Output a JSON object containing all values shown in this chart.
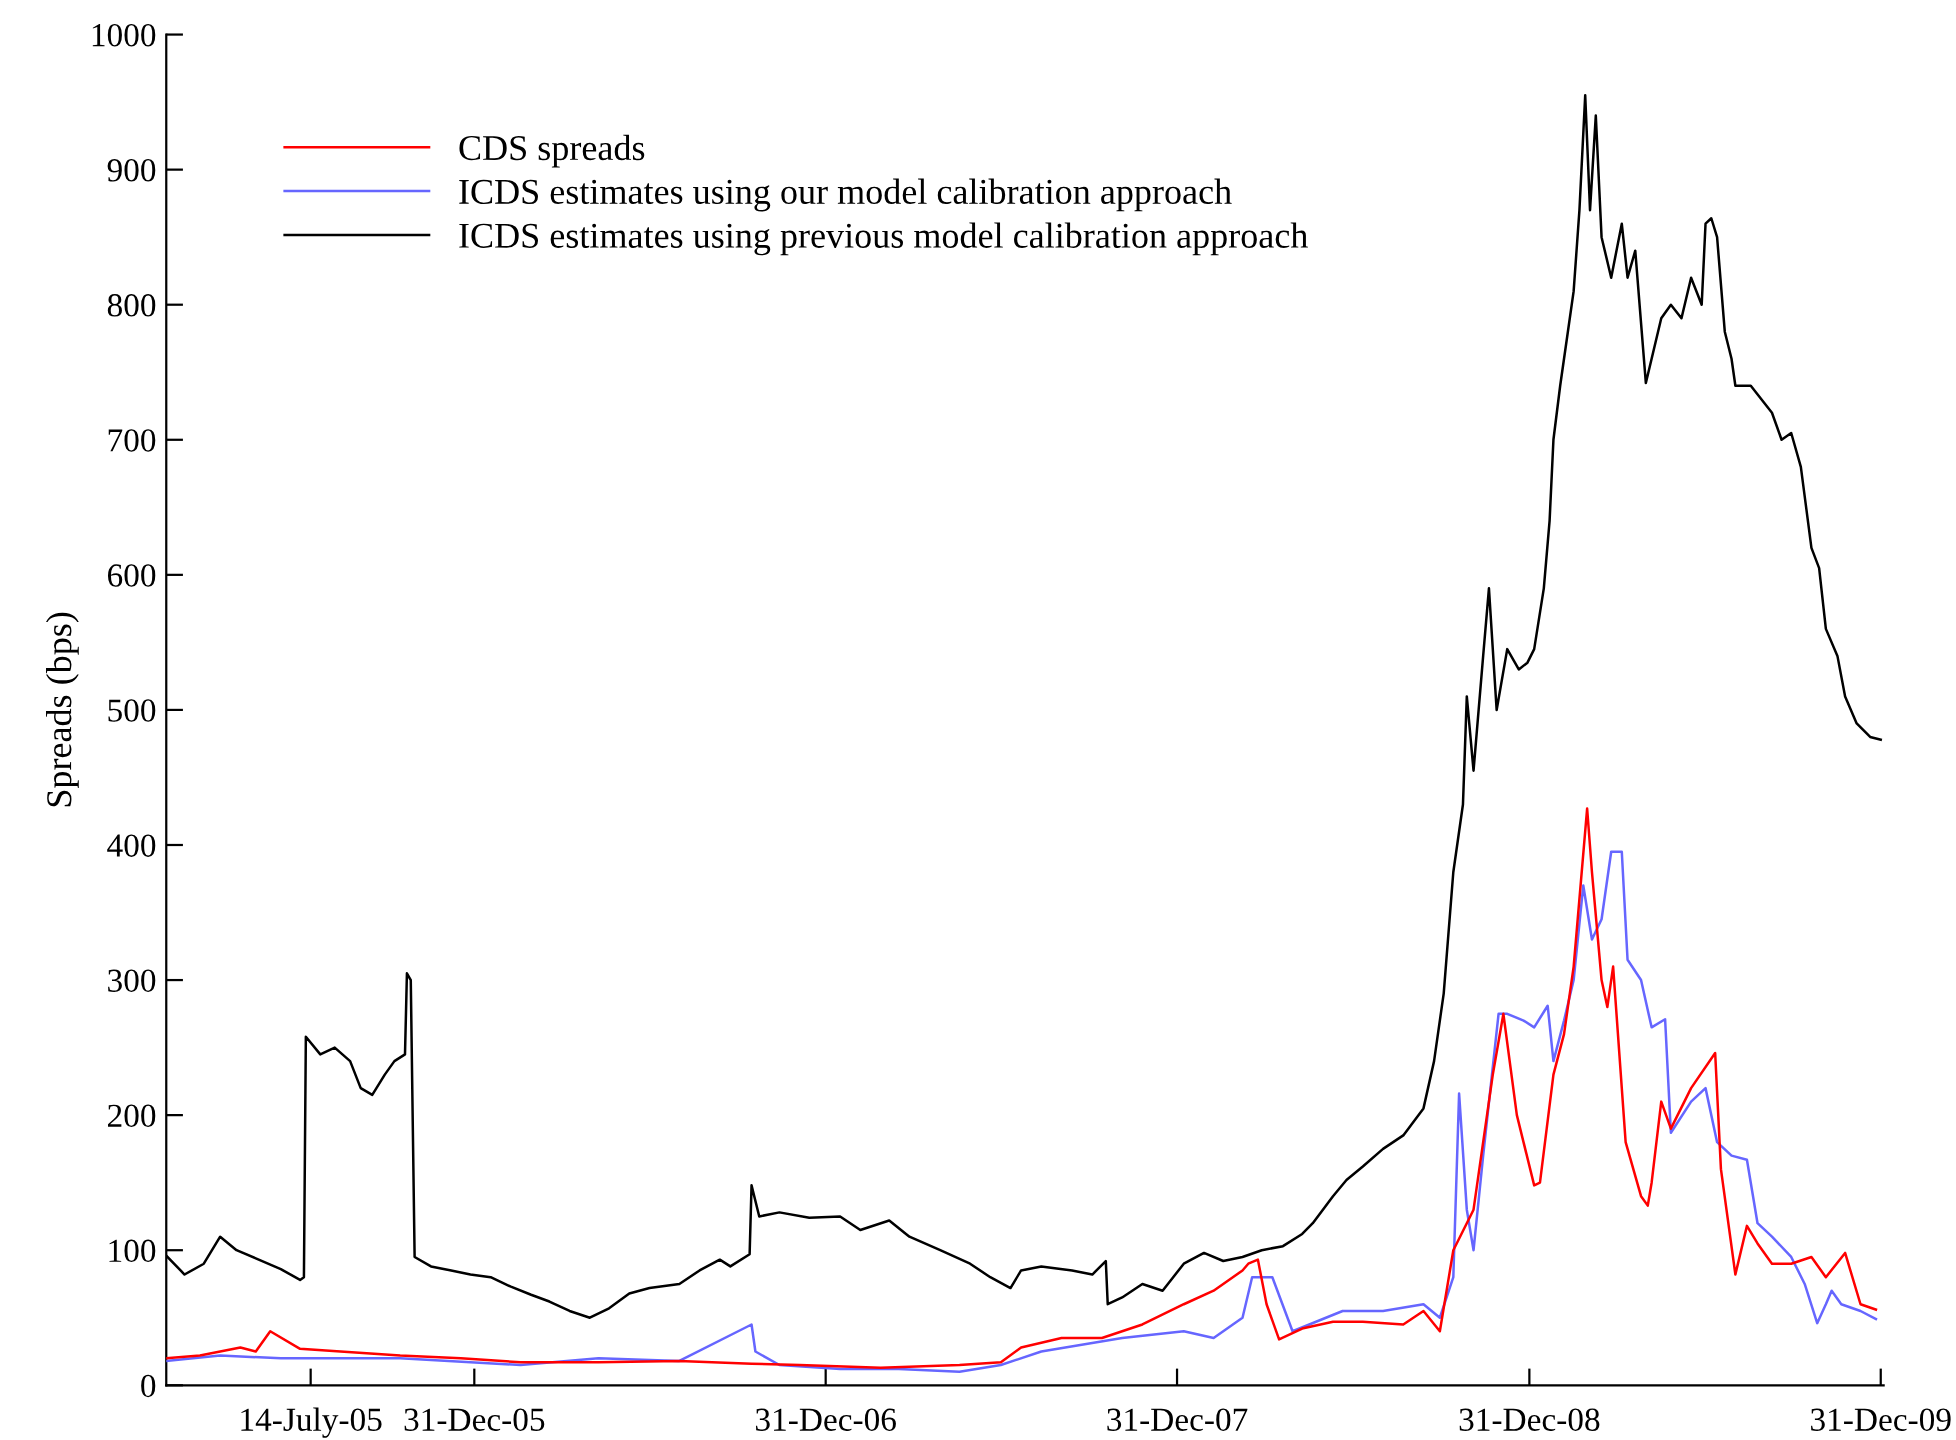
{
  "chart_data": {
    "type": "line",
    "ylabel": "Spreads (bps)",
    "xlim": [
      "2005-02-14",
      "2010-01-03"
    ],
    "xticks": [
      {
        "value": "2005-07-14",
        "label": "14-July-05"
      },
      {
        "value": "2005-12-31",
        "label": "31-Dec-05"
      },
      {
        "value": "2006-12-31",
        "label": "31-Dec-06"
      },
      {
        "value": "2007-12-31",
        "label": "31-Dec-07"
      },
      {
        "value": "2008-12-31",
        "label": "31-Dec-08"
      },
      {
        "value": "2009-12-31",
        "label": "31-Dec-09"
      }
    ],
    "ylim": [
      0,
      1000
    ],
    "yticks": [
      0,
      100,
      200,
      300,
      400,
      500,
      600,
      700,
      800,
      900,
      1000
    ],
    "grid": false,
    "legend": "top left",
    "line_style": "solid",
    "marker": "none",
    "series": [
      {
        "name": "CDS spreads",
        "color": "#ff0000",
        "x": [
          "2005-02-14",
          "2005-03-21",
          "2005-05-02",
          "2005-05-18",
          "2005-06-02",
          "2005-07-03",
          "2005-08-14",
          "2005-10-15",
          "2005-12-17",
          "2006-02-17",
          "2006-05-09",
          "2006-08-01",
          "2006-10-15",
          "2006-12-04",
          "2007-02-26",
          "2007-05-19",
          "2007-07-01",
          "2007-07-22",
          "2007-09-02",
          "2007-10-14",
          "2007-11-25",
          "2008-01-07",
          "2008-02-07",
          "2008-03-08",
          "2008-03-14",
          "2008-03-24",
          "2008-04-02",
          "2008-04-15",
          "2008-05-09",
          "2008-06-10",
          "2008-07-11",
          "2008-08-22",
          "2008-09-12",
          "2008-09-29",
          "2008-10-13",
          "2008-11-03",
          "2008-11-23",
          "2008-12-04",
          "2008-12-18",
          "2009-01-05",
          "2009-01-11",
          "2009-01-25",
          "2009-02-05",
          "2009-02-15",
          "2009-03-01",
          "2009-03-06",
          "2009-03-16",
          "2009-03-22",
          "2009-03-28",
          "2009-04-10",
          "2009-04-26",
          "2009-05-03",
          "2009-05-07",
          "2009-05-17",
          "2009-05-27",
          "2009-06-17",
          "2009-07-12",
          "2009-07-18",
          "2009-08-02",
          "2009-08-14",
          "2009-08-25",
          "2009-09-09",
          "2009-09-29",
          "2009-10-20",
          "2009-11-04",
          "2009-11-24",
          "2009-12-10",
          "2009-12-26"
        ],
        "values": [
          20,
          22,
          28,
          25,
          40,
          27,
          25,
          22,
          20,
          17,
          17,
          18,
          16,
          15,
          13,
          15,
          17,
          28,
          35,
          35,
          45,
          60,
          70,
          85,
          90,
          93,
          60,
          34,
          42,
          47,
          47,
          45,
          55,
          40,
          100,
          130,
          230,
          275,
          200,
          148,
          150,
          230,
          260,
          310,
          427,
          380,
          300,
          280,
          310,
          180,
          140,
          133,
          150,
          210,
          190,
          220,
          246,
          160,
          82,
          118,
          105,
          90,
          90,
          95,
          80,
          98,
          60,
          56
        ]
      },
      {
        "name": "ICDS estimates using our model calibration approach",
        "color": "#6666ff",
        "x": [
          "2005-02-14",
          "2005-04-11",
          "2005-06-13",
          "2005-10-15",
          "2006-02-17",
          "2006-05-09",
          "2006-08-01",
          "2006-10-15",
          "2006-10-19",
          "2006-11-13",
          "2007-01-15",
          "2007-03-17",
          "2007-05-19",
          "2007-07-01",
          "2007-08-12",
          "2007-11-04",
          "2008-01-07",
          "2008-02-07",
          "2008-03-08",
          "2008-03-18",
          "2008-04-08",
          "2008-04-29",
          "2008-06-20",
          "2008-08-01",
          "2008-09-12",
          "2008-09-29",
          "2008-10-13",
          "2008-10-19",
          "2008-10-27",
          "2008-11-03",
          "2008-11-13",
          "2008-11-29",
          "2008-12-08",
          "2008-12-25",
          "2009-01-05",
          "2009-01-19",
          "2009-01-25",
          "2009-02-05",
          "2009-02-15",
          "2009-02-25",
          "2009-03-06",
          "2009-03-16",
          "2009-03-26",
          "2009-04-06",
          "2009-04-12",
          "2009-04-26",
          "2009-05-07",
          "2009-05-21",
          "2009-05-27",
          "2009-06-17",
          "2009-07-02",
          "2009-07-14",
          "2009-07-29",
          "2009-08-14",
          "2009-08-25",
          "2009-09-09",
          "2009-09-29",
          "2009-10-13",
          "2009-10-26",
          "2009-11-04",
          "2009-11-10",
          "2009-11-20",
          "2009-12-10",
          "2009-12-26"
        ],
        "values": [
          18,
          22,
          20,
          20,
          15,
          20,
          18,
          45,
          25,
          15,
          12,
          12,
          10,
          15,
          25,
          35,
          40,
          35,
          50,
          80,
          80,
          40,
          55,
          55,
          60,
          50,
          80,
          216,
          130,
          100,
          170,
          275,
          275,
          270,
          265,
          281,
          240,
          270,
          300,
          370,
          330,
          345,
          395,
          395,
          315,
          300,
          265,
          271,
          187,
          210,
          220,
          180,
          170,
          167,
          120,
          110,
          95,
          75,
          46,
          60,
          70,
          60,
          55,
          49
        ]
      },
      {
        "name": "ICDS estimates using previous model calibration approach",
        "color": "#000000",
        "x": [
          "2005-02-14",
          "2005-03-05",
          "2005-03-25",
          "2005-04-11",
          "2005-04-28",
          "2005-05-18",
          "2005-06-13",
          "2005-07-03",
          "2005-07-07",
          "2005-07-09",
          "2005-07-24",
          "2005-08-08",
          "2005-08-24",
          "2005-09-04",
          "2005-09-16",
          "2005-09-29",
          "2005-10-09",
          "2005-10-20",
          "2005-10-22",
          "2005-10-26",
          "2005-10-30",
          "2005-11-16",
          "2005-12-07",
          "2005-12-27",
          "2006-01-17",
          "2006-02-07",
          "2006-02-28",
          "2006-03-19",
          "2006-04-09",
          "2006-04-30",
          "2006-05-20",
          "2006-06-10",
          "2006-07-01",
          "2006-08-01",
          "2006-08-22",
          "2006-09-12",
          "2006-09-23",
          "2006-10-13",
          "2006-10-15",
          "2006-10-23",
          "2006-11-13",
          "2006-12-14",
          "2007-01-15",
          "2007-02-05",
          "2007-03-07",
          "2007-03-28",
          "2007-04-29",
          "2007-05-30",
          "2007-06-20",
          "2007-07-11",
          "2007-07-22",
          "2007-08-12",
          "2007-09-13",
          "2007-10-04",
          "2007-10-18",
          "2007-10-20",
          "2007-11-04",
          "2007-11-25",
          "2007-12-16",
          "2008-01-07",
          "2008-01-28",
          "2008-02-17",
          "2008-03-08",
          "2008-03-28",
          "2008-04-19",
          "2008-05-09",
          "2008-05-20",
          "2008-06-10",
          "2008-06-24",
          "2008-07-11",
          "2008-08-01",
          "2008-08-22",
          "2008-09-12",
          "2008-09-23",
          "2008-10-03",
          "2008-10-13",
          "2008-10-23",
          "2008-10-27",
          "2008-11-03",
          "2008-11-13",
          "2008-11-19",
          "2008-11-27",
          "2008-12-08",
          "2008-12-20",
          "2008-12-29",
          "2009-01-05",
          "2009-01-15",
          "2009-01-21",
          "2009-01-25",
          "2009-02-01",
          "2009-02-09",
          "2009-02-15",
          "2009-02-21",
          "2009-02-27",
          "2009-03-04",
          "2009-03-10",
          "2009-03-16",
          "2009-03-26",
          "2009-04-06",
          "2009-04-12",
          "2009-04-20",
          "2009-05-01",
          "2009-05-07",
          "2009-05-17",
          "2009-05-27",
          "2009-06-07",
          "2009-06-17",
          "2009-06-28",
          "2009-07-02",
          "2009-07-08",
          "2009-07-14",
          "2009-07-22",
          "2009-07-29",
          "2009-08-02",
          "2009-08-18",
          "2009-08-29",
          "2009-09-09",
          "2009-09-19",
          "2009-09-29",
          "2009-10-09",
          "2009-10-20",
          "2009-10-28",
          "2009-11-04",
          "2009-11-16",
          "2009-11-24",
          "2009-12-06",
          "2009-12-20",
          "2009-12-31"
        ],
        "values": [
          96,
          82,
          90,
          110,
          100,
          94,
          86,
          78,
          80,
          258,
          245,
          250,
          240,
          220,
          215,
          230,
          240,
          245,
          305,
          300,
          95,
          88,
          85,
          82,
          80,
          73,
          67,
          62,
          55,
          50,
          57,
          68,
          72,
          75,
          85,
          93,
          88,
          97,
          148,
          125,
          128,
          124,
          125,
          115,
          122,
          110,
          100,
          90,
          80,
          72,
          85,
          88,
          85,
          82,
          92,
          60,
          65,
          75,
          70,
          90,
          98,
          92,
          95,
          100,
          103,
          112,
          120,
          140,
          152,
          162,
          175,
          185,
          205,
          240,
          290,
          380,
          430,
          510,
          455,
          540,
          590,
          500,
          545,
          530,
          535,
          545,
          590,
          640,
          700,
          740,
          780,
          810,
          870,
          955,
          870,
          940,
          850,
          820,
          860,
          820,
          840,
          742,
          760,
          790,
          800,
          790,
          820,
          800,
          860,
          864,
          850,
          780,
          760,
          740,
          740,
          730,
          720,
          700,
          705,
          680,
          620,
          605,
          560,
          540,
          510,
          490,
          480,
          478
        ]
      }
    ]
  }
}
